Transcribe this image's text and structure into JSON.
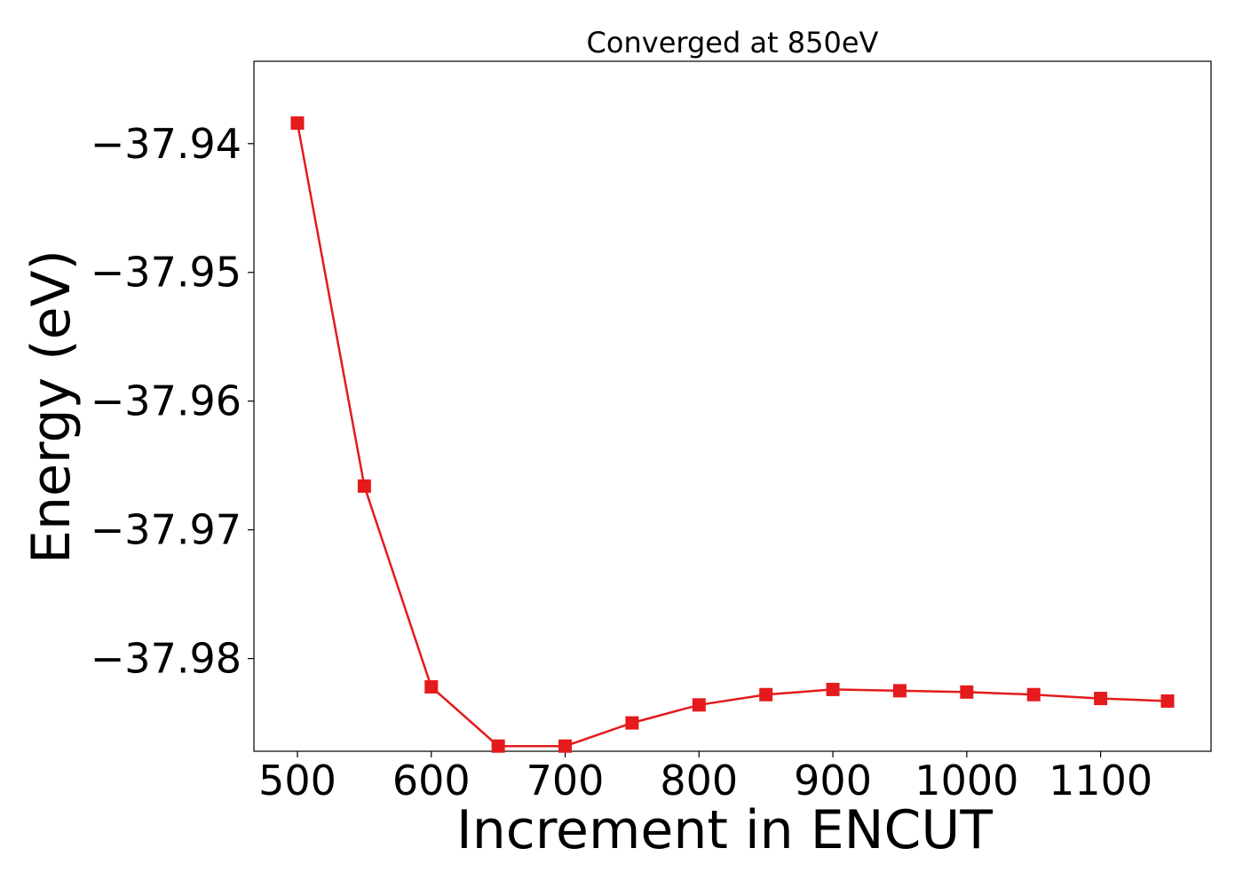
{
  "chart_data": {
    "type": "line",
    "title": "Converged at 850eV",
    "xlabel": "Increment in ENCUT",
    "ylabel": "Energy (eV)",
    "x": [
      500,
      550,
      600,
      650,
      700,
      750,
      800,
      850,
      900,
      950,
      1000,
      1050,
      1100,
      1150
    ],
    "x_ticks": [
      500,
      600,
      700,
      800,
      900,
      1000,
      1100
    ],
    "y_ticks": [
      -37.94,
      -37.95,
      -37.96,
      -37.97,
      -37.98
    ],
    "y_tick_labels": [
      "−37.94",
      "−37.95",
      "−37.96",
      "−37.97",
      "−37.98"
    ],
    "xlim": [
      467.5,
      1182.5
    ],
    "ylim": [
      -37.9872,
      -37.9336
    ],
    "series": [
      {
        "values": [
          -37.9384,
          -37.9666,
          -37.9822,
          -37.9868,
          -37.9868,
          -37.985,
          -37.9836,
          -37.9828,
          -37.9824,
          -37.9825,
          -37.9826,
          -37.9828,
          -37.9831,
          -37.9833
        ],
        "color": "#e41a1c",
        "marker": "square"
      }
    ],
    "grid": false,
    "legend": "none"
  }
}
